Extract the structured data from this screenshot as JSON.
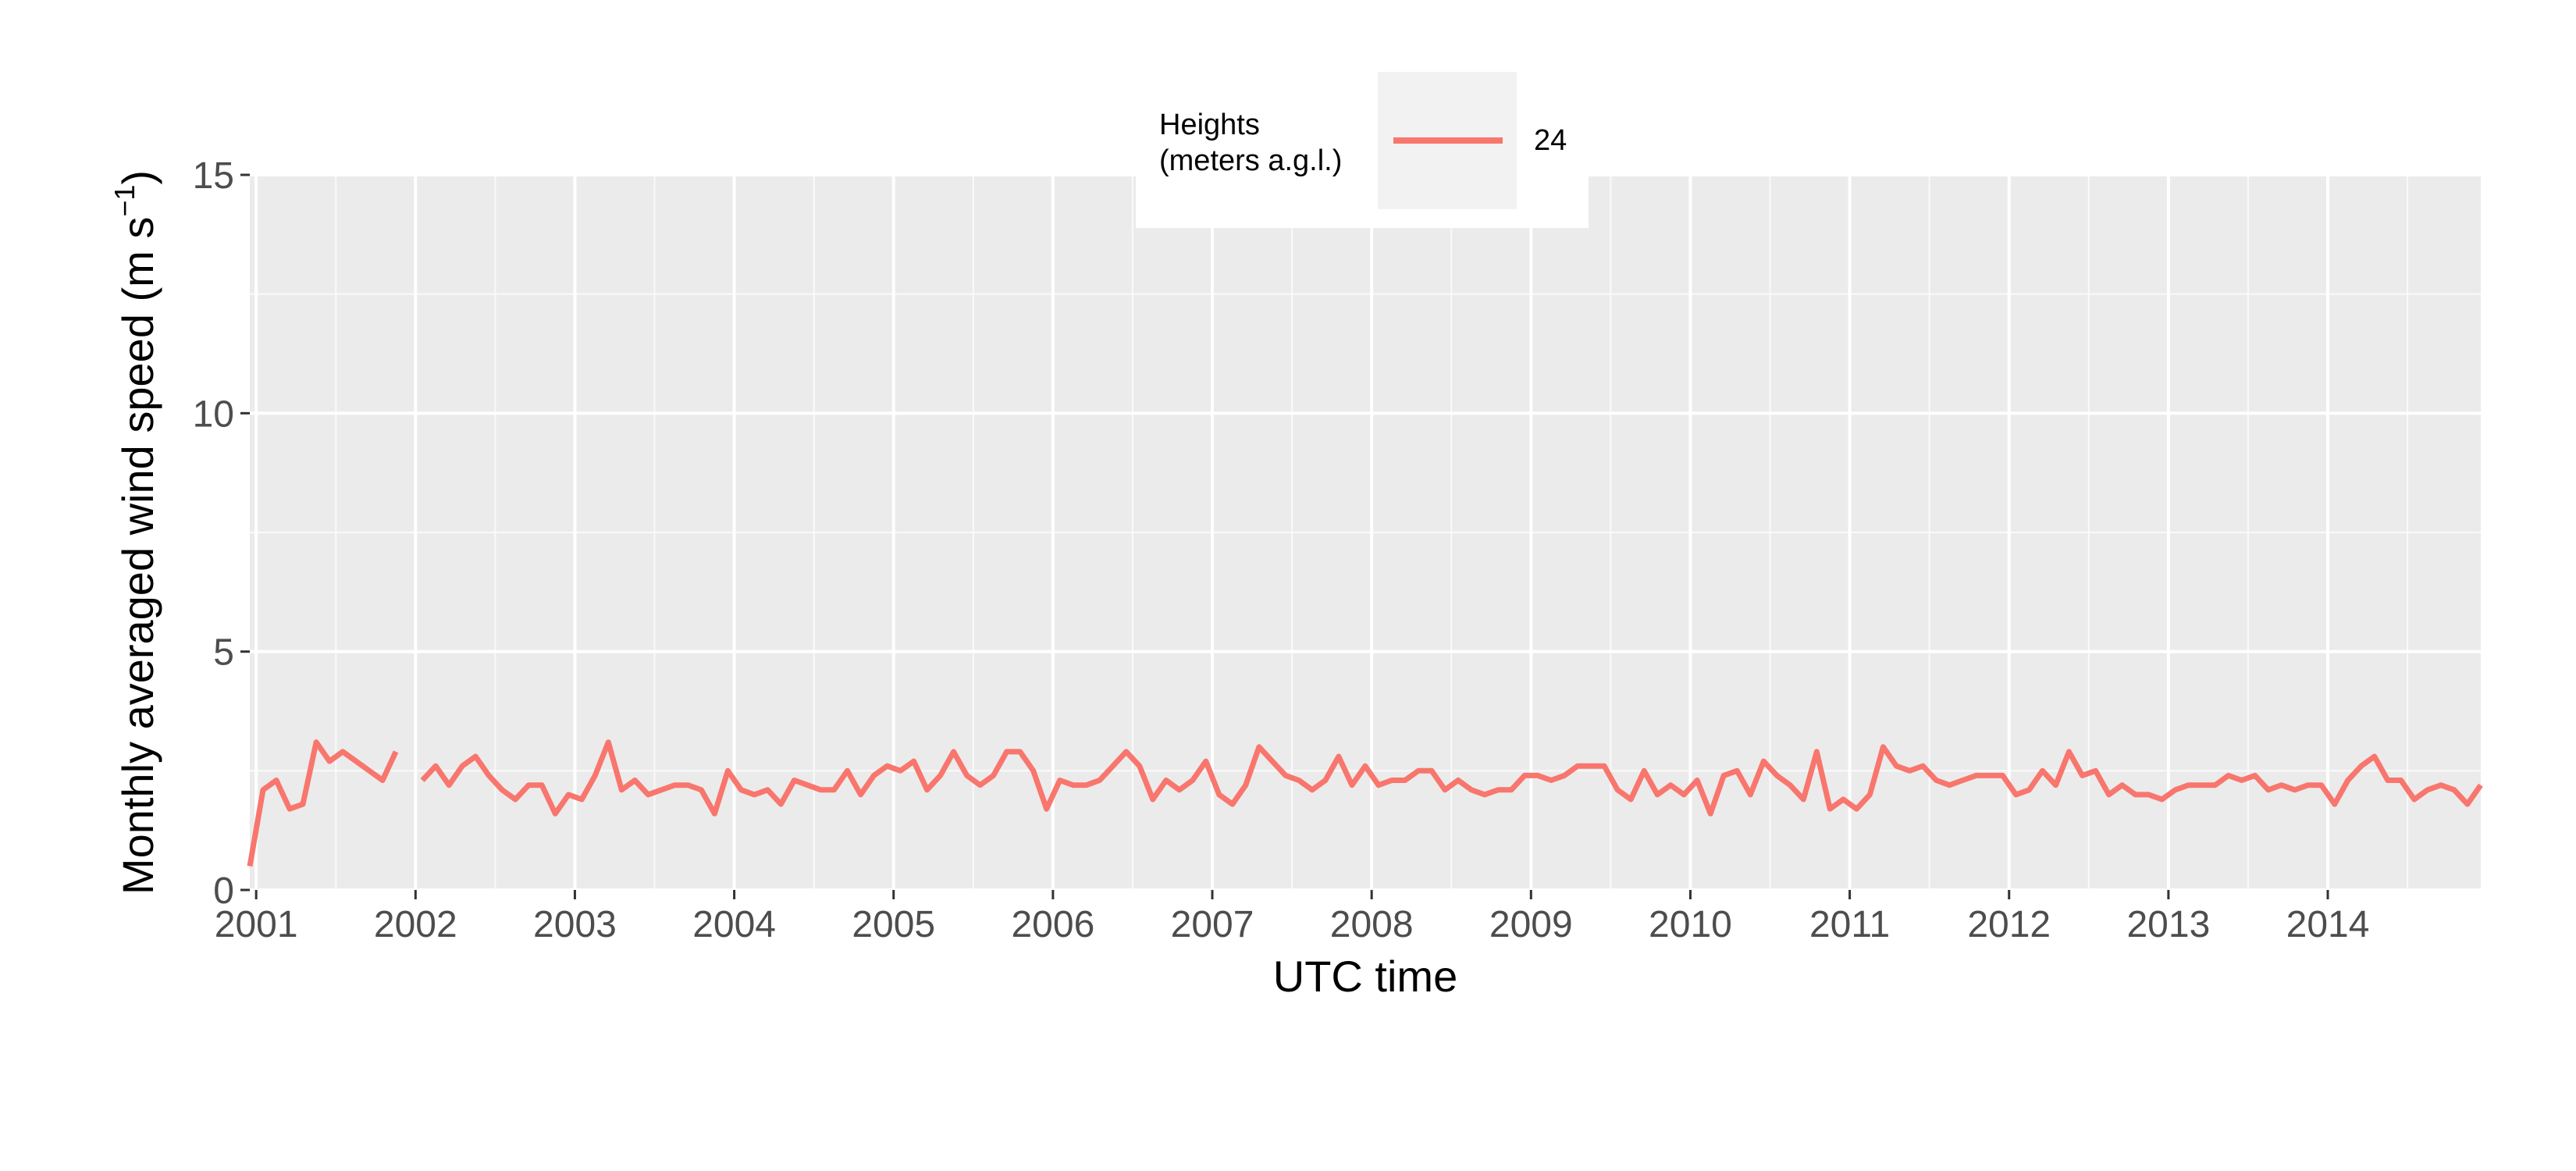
{
  "chart_data": {
    "type": "line",
    "xlabel": "UTC time",
    "ylabel": "Monthly averaged wind speed (m s",
    "ylabel_sup": "−1",
    "ylabel_close": ")",
    "xlim": [
      2000.96,
      2014.96
    ],
    "ylim": [
      0,
      15
    ],
    "y_ticks": [
      0,
      5,
      10,
      15
    ],
    "x_ticks": [
      2001,
      2002,
      2003,
      2004,
      2005,
      2006,
      2007,
      2008,
      2009,
      2010,
      2011,
      2012,
      2013,
      2014
    ],
    "grid": true,
    "legend": {
      "title_line1": "Heights",
      "title_line2": "(meters a.g.l.)",
      "placement": "top-center",
      "entries": [
        {
          "label": "24",
          "color": "#F8766D"
        }
      ]
    },
    "series": [
      {
        "name": "24",
        "color": "#F8766D",
        "start_year": 2000.96,
        "step_years": 0.08333,
        "values": [
          0.5,
          2.1,
          2.3,
          1.7,
          1.8,
          3.1,
          2.7,
          2.9,
          2.7,
          2.5,
          2.3,
          2.9,
          null,
          2.3,
          2.6,
          2.2,
          2.6,
          2.8,
          2.4,
          2.1,
          1.9,
          2.2,
          2.2,
          1.6,
          2.0,
          1.9,
          2.4,
          3.1,
          2.1,
          2.3,
          2.0,
          2.1,
          2.2,
          2.2,
          2.1,
          1.6,
          2.5,
          2.1,
          2.0,
          2.1,
          1.8,
          2.3,
          2.2,
          2.1,
          2.1,
          2.5,
          2.0,
          2.4,
          2.6,
          2.5,
          2.7,
          2.1,
          2.4,
          2.9,
          2.4,
          2.2,
          2.4,
          2.9,
          2.9,
          2.5,
          1.7,
          2.3,
          2.2,
          2.2,
          2.3,
          2.6,
          2.9,
          2.6,
          1.9,
          2.3,
          2.1,
          2.3,
          2.7,
          2.0,
          1.8,
          2.2,
          3.0,
          2.7,
          2.4,
          2.3,
          2.1,
          2.3,
          2.8,
          2.2,
          2.6,
          2.2,
          2.3,
          2.3,
          2.5,
          2.5,
          2.1,
          2.3,
          2.1,
          2.0,
          2.1,
          2.1,
          2.4,
          2.4,
          2.3,
          2.4,
          2.6,
          2.6,
          2.6,
          2.1,
          1.9,
          2.5,
          2.0,
          2.2,
          2.0,
          2.3,
          1.6,
          2.4,
          2.5,
          2.0,
          2.7,
          2.4,
          2.2,
          1.9,
          2.9,
          1.7,
          1.9,
          1.7,
          2.0,
          3.0,
          2.6,
          2.5,
          2.6,
          2.3,
          2.2,
          2.3,
          2.4,
          2.4,
          2.4,
          2.0,
          2.1,
          2.5,
          2.2,
          2.9,
          2.4,
          2.5,
          2.0,
          2.2,
          2.0,
          2.0,
          1.9,
          2.1,
          2.2,
          2.2,
          2.2,
          2.4,
          2.3,
          2.4,
          2.1,
          2.2,
          2.1,
          2.2,
          2.2,
          1.8,
          2.3,
          2.6,
          2.8,
          2.3,
          2.3,
          1.9,
          2.1,
          2.2,
          2.1,
          1.8,
          2.2
        ]
      }
    ]
  }
}
